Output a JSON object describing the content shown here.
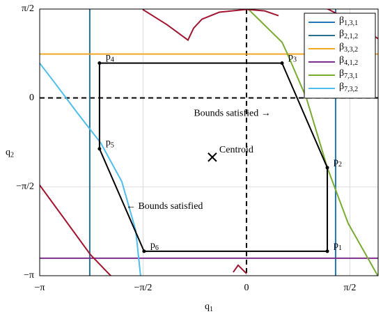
{
  "chart_data": {
    "type": "line",
    "xlabel": "q1",
    "ylabel": "q2",
    "xlim": [
      -3.1416,
      2.0
    ],
    "ylim": [
      -3.1416,
      1.5708
    ],
    "xticks": [
      {
        "value": -3.1416,
        "label": "−π"
      },
      {
        "value": -1.5708,
        "label": "−π/2"
      },
      {
        "value": 0,
        "label": "0"
      },
      {
        "value": 1.5708,
        "label": "π/2"
      }
    ],
    "yticks": [
      {
        "value": -3.1416,
        "label": "−π"
      },
      {
        "value": -1.5708,
        "label": "−π/2"
      },
      {
        "value": 0,
        "label": "0"
      },
      {
        "value": 1.5708,
        "label": "π/2"
      }
    ],
    "grid": true,
    "legend": "upper right",
    "series": [
      {
        "name": "β1,3,1",
        "color": "#1f77b4",
        "x": [
          1.354,
          1.354
        ],
        "values": [
          -3.1416,
          1.5708
        ]
      },
      {
        "name": "β2,1,2",
        "color": "#2b6f8f",
        "x": [
          -2.381,
          -2.381
        ],
        "values": [
          -3.1416,
          1.5708
        ]
      },
      {
        "name": "β3,3,2",
        "color": "#f5a623",
        "x": [
          -3.1416,
          2.0
        ],
        "values": [
          0.776,
          0.776
        ]
      },
      {
        "name": "β4,1,2",
        "color": "#7e2f8e",
        "x": [
          -3.1416,
          2.0
        ],
        "values": [
          -2.833,
          -2.833
        ]
      },
      {
        "name": "β7,3,1",
        "color": "#77ac30",
        "x": [
          0.032,
          0.54,
          0.614,
          0.91,
          1.228,
          1.545,
          2.0
        ],
        "values": [
          1.564,
          0.985,
          0.8,
          0,
          -1.232,
          -2.217,
          -3.153
        ]
      },
      {
        "name": "β7,3,2",
        "color": "#4dbeee",
        "x": [
          -3.143,
          -2.899,
          -2.582,
          -2.212,
          -1.894,
          -1.683,
          -1.608
        ],
        "values": [
          0.616,
          0.246,
          -0.246,
          -0.8,
          -1.478,
          -2.34,
          -3.153
        ]
      },
      {
        "color": "#a2142f",
        "x": [
          -1.577,
          -1.206,
          -0.889,
          -0.804,
          -0.677,
          -0.413,
          0,
          0.275,
          0.487,
          null,
          1.228,
          1.598,
          2.0,
          null,
          -3.143,
          -2.794,
          -2.37,
          -2.053,
          null,
          -0.201,
          -0.127,
          0
        ],
        "values": [
          1.564,
          1.293,
          1.022,
          1.232,
          1.392,
          1.515,
          1.564,
          1.539,
          1.453,
          null,
          1.576,
          1.355,
          1.047,
          null,
          -1.539,
          -2.094,
          -2.771,
          -3.153,
          null,
          -3.079,
          -2.956,
          -3.103
        ]
      }
    ],
    "vertices": [
      {
        "label": "p1",
        "x": 1.228,
        "y": -2.709
      },
      {
        "label": "p2",
        "x": 1.228,
        "y": -1.232
      },
      {
        "label": "p3",
        "x": 0.54,
        "y": 0.616
      },
      {
        "label": "p4",
        "x": -2.233,
        "y": 0.616
      },
      {
        "label": "p5",
        "x": -2.233,
        "y": -0.899
      },
      {
        "label": "p6",
        "x": -1.556,
        "y": -2.709
      }
    ],
    "centroid": {
      "label": "Centroid",
      "x": -0.519,
      "y": -1.047
    },
    "annotations": [
      {
        "text": "Bounds satisfied →",
        "x": -0.8,
        "y": -0.28
      },
      {
        "text": "← Bounds satisfied",
        "x": -1.83,
        "y": -1.92
      }
    ]
  }
}
